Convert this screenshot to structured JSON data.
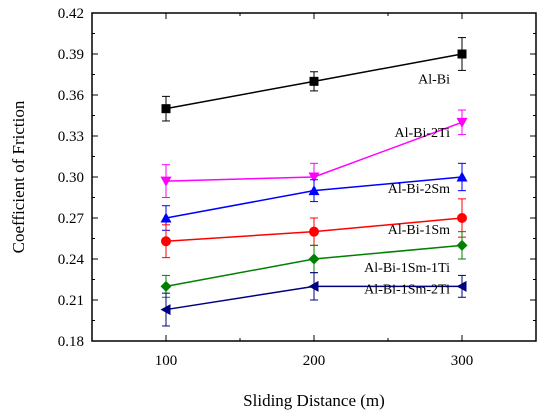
{
  "chart_data": {
    "type": "line",
    "title": "",
    "xlabel": "Sliding Distance (m)",
    "ylabel": "Coefficient of Friction",
    "x": [
      100,
      200,
      300
    ],
    "xlim": [
      50,
      350
    ],
    "ylim": [
      0.18,
      0.42
    ],
    "xticks": [
      100,
      200,
      300
    ],
    "yticks": [
      "0.18",
      "0.21",
      "0.24",
      "0.27",
      "0.30",
      "0.33",
      "0.36",
      "0.39",
      "0.42"
    ],
    "grid": false,
    "legend": "inline labels at right end of each series",
    "series": [
      {
        "name": "Al-Bi",
        "color": "#000000",
        "marker": "square",
        "values": [
          0.35,
          0.37,
          0.39
        ],
        "errors": [
          0.009,
          0.007,
          0.012
        ]
      },
      {
        "name": "Al-Bi-2Ti",
        "color": "#ff00ff",
        "marker": "triangle-down",
        "values": [
          0.297,
          0.3,
          0.34
        ],
        "errors": [
          0.012,
          0.01,
          0.009
        ]
      },
      {
        "name": "Al-Bi-2Sm",
        "color": "#0000ff",
        "marker": "triangle-up",
        "values": [
          0.27,
          0.29,
          0.3
        ],
        "errors": [
          0.009,
          0.008,
          0.01
        ]
      },
      {
        "name": "Al-Bi-1Sm",
        "color": "#ff0000",
        "marker": "circle",
        "values": [
          0.253,
          0.26,
          0.27
        ],
        "errors": [
          0.012,
          0.01,
          0.014
        ]
      },
      {
        "name": "Al-Bi-1Sm-1Ti",
        "color": "#008000",
        "marker": "diamond",
        "values": [
          0.22,
          0.24,
          0.25
        ],
        "errors": [
          0.008,
          0.01,
          0.01
        ]
      },
      {
        "name": "Al-Bi-1Sm-2Ti",
        "color": "#000080",
        "marker": "triangle-left",
        "values": [
          0.203,
          0.22,
          0.22
        ],
        "errors": [
          0.012,
          0.01,
          0.008
        ]
      }
    ]
  }
}
